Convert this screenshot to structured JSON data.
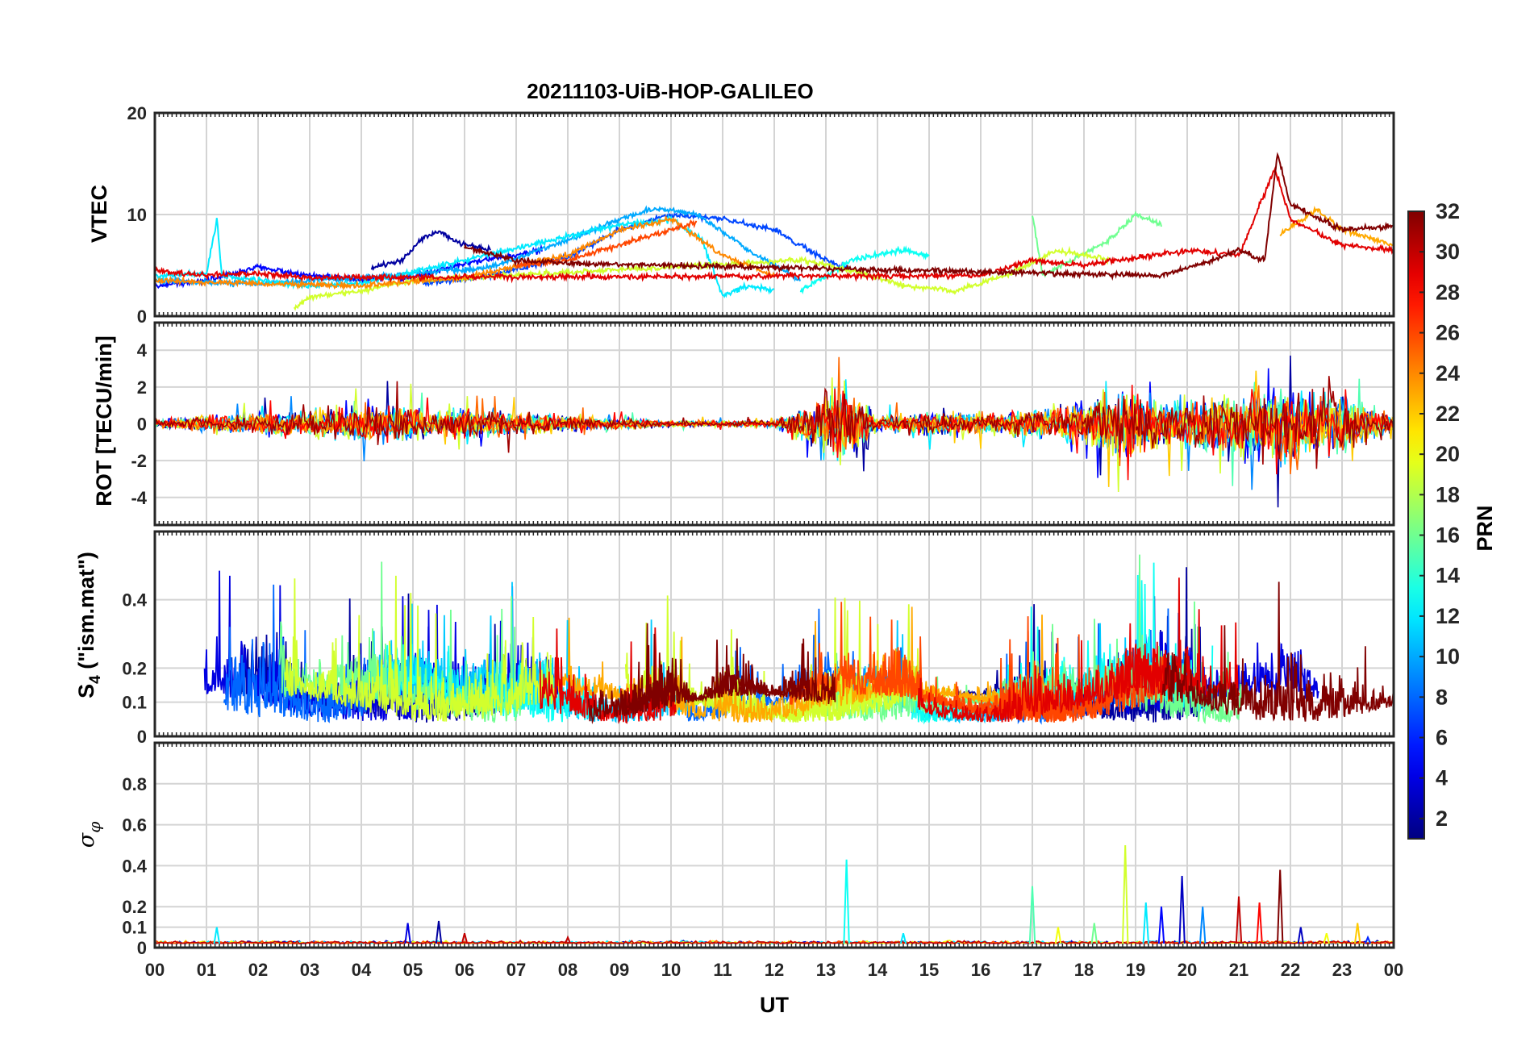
{
  "figure": {
    "title": "20211103-UiB-HOP-GALILEO",
    "xlabel": "UT",
    "x_ticks": [
      "00",
      "01",
      "02",
      "03",
      "04",
      "05",
      "06",
      "07",
      "08",
      "09",
      "10",
      "11",
      "12",
      "13",
      "14",
      "15",
      "16",
      "17",
      "18",
      "19",
      "20",
      "21",
      "22",
      "23",
      "00"
    ]
  },
  "colorbar": {
    "label": "PRN",
    "range": [
      1,
      32
    ],
    "ticks": [
      2,
      4,
      6,
      8,
      10,
      12,
      14,
      16,
      18,
      20,
      22,
      24,
      26,
      28,
      30,
      32
    ],
    "colormap": "jet"
  },
  "chart_data": [
    {
      "type": "line",
      "panel": "vtec",
      "ylabel": "VTEC",
      "ylim": [
        0,
        20
      ],
      "y_ticks": [
        0,
        10,
        20
      ],
      "xlim": [
        0,
        24
      ],
      "grid": true,
      "series_keypoints": [
        {
          "prn": 2,
          "points": [
            [
              4.2,
              4.8
            ],
            [
              4.8,
              5.5
            ],
            [
              5.2,
              7.8
            ],
            [
              5.5,
              8.3
            ],
            [
              6.0,
              7.0
            ],
            [
              6.5,
              6.5
            ]
          ]
        },
        {
          "prn": 5,
          "points": [
            [
              0,
              3.0
            ],
            [
              1.0,
              3.5
            ],
            [
              2.0,
              4.8
            ],
            [
              3.0,
              4.0
            ],
            [
              4.0,
              3.6
            ],
            [
              5.0,
              3.8
            ],
            [
              6.0,
              5.2
            ],
            [
              7.0,
              6.0
            ],
            [
              7.5,
              6.5
            ]
          ]
        },
        {
          "prn": 7,
          "points": [
            [
              5.2,
              3.2
            ],
            [
              6.5,
              4.0
            ],
            [
              8.0,
              5.8
            ],
            [
              9.0,
              8.5
            ],
            [
              10.0,
              10.0
            ],
            [
              11.0,
              9.6
            ],
            [
              12.0,
              8.5
            ],
            [
              13.0,
              5.5
            ],
            [
              13.5,
              4.5
            ]
          ]
        },
        {
          "prn": 10,
          "points": [
            [
              0,
              3.5
            ],
            [
              2.0,
              3.2
            ],
            [
              4.0,
              3.8
            ],
            [
              6.5,
              4.8
            ],
            [
              8.0,
              7.5
            ],
            [
              9.0,
              9.5
            ],
            [
              9.7,
              10.6
            ],
            [
              10.5,
              10.0
            ],
            [
              11.5,
              6.5
            ],
            [
              12.5,
              3.5
            ]
          ]
        },
        {
          "prn": 12,
          "points": [
            [
              0,
              4.0
            ],
            [
              1.0,
              4.2
            ],
            [
              1.2,
              9.5
            ],
            [
              1.3,
              4.0
            ],
            [
              2.0,
              3.5
            ],
            [
              3.0,
              3.0
            ],
            [
              4.0,
              3.2
            ],
            [
              9.0,
              9.0
            ],
            [
              10.0,
              9.5
            ],
            [
              10.6,
              7.5
            ],
            [
              11.0,
              2.0
            ],
            [
              11.5,
              3.0
            ],
            [
              12.0,
              2.5
            ]
          ]
        },
        {
          "prn": 13,
          "points": [
            [
              12.5,
              2.5
            ],
            [
              13.5,
              5.5
            ],
            [
              14.5,
              6.5
            ],
            [
              15.0,
              6.0
            ]
          ]
        },
        {
          "prn": 16,
          "points": [
            [
              17.0,
              10.0
            ],
            [
              17.2,
              4.0
            ],
            [
              18.5,
              7.5
            ],
            [
              19.0,
              10.0
            ],
            [
              19.5,
              9.0
            ]
          ]
        },
        {
          "prn": 19,
          "points": [
            [
              2.7,
              0.8
            ],
            [
              3.0,
              1.8
            ],
            [
              4.0,
              2.5
            ],
            [
              5.0,
              3.5
            ],
            [
              12.5,
              5.5
            ],
            [
              13.5,
              4.5
            ],
            [
              14.5,
              3.0
            ],
            [
              15.5,
              2.5
            ],
            [
              16.5,
              4.0
            ],
            [
              17.5,
              6.5
            ],
            [
              18.5,
              5.5
            ]
          ]
        },
        {
          "prn": 23,
          "points": [
            [
              21.8,
              8.0
            ],
            [
              22.5,
              10.5
            ],
            [
              23.0,
              8.5
            ],
            [
              24.0,
              7.0
            ]
          ]
        },
        {
          "prn": 24,
          "points": [
            [
              0,
              3.5
            ],
            [
              2.0,
              3.2
            ],
            [
              4.0,
              3.0
            ],
            [
              6.0,
              3.8
            ],
            [
              8.0,
              6.0
            ],
            [
              9.0,
              8.5
            ],
            [
              10.0,
              9.5
            ],
            [
              11.0,
              6.0
            ],
            [
              12.0,
              4.0
            ]
          ]
        },
        {
          "prn": 26,
          "points": [
            [
              7.0,
              5.0
            ],
            [
              8.0,
              5.5
            ],
            [
              9.0,
              7.0
            ],
            [
              10.0,
              8.5
            ],
            [
              10.5,
              9.2
            ]
          ]
        },
        {
          "prn": 29,
          "points": [
            [
              0,
              4.5
            ],
            [
              1.0,
              4.0
            ],
            [
              2.0,
              4.2
            ],
            [
              3.0,
              3.8
            ],
            [
              16.0,
              4.0
            ],
            [
              17.0,
              5.5
            ],
            [
              18.0,
              5.0
            ],
            [
              20.0,
              6.5
            ],
            [
              21.0,
              6.0
            ],
            [
              21.7,
              14.5
            ],
            [
              22.0,
              9.5
            ],
            [
              23.0,
              7.0
            ],
            [
              24.0,
              6.5
            ]
          ]
        },
        {
          "prn": 32,
          "points": [
            [
              6.0,
              6.8
            ],
            [
              7.0,
              5.5
            ],
            [
              8.0,
              5.2
            ],
            [
              19.5,
              4.0
            ],
            [
              20.5,
              5.5
            ],
            [
              21.0,
              6.5
            ],
            [
              21.5,
              5.5
            ],
            [
              21.75,
              16.0
            ],
            [
              22.0,
              11.0
            ],
            [
              23.0,
              8.5
            ],
            [
              24.0,
              8.8
            ]
          ]
        }
      ]
    },
    {
      "type": "line",
      "panel": "rot",
      "ylabel": "ROT [TECU/min]",
      "ylim": [
        -5.5,
        5.5
      ],
      "y_ticks": [
        -4,
        -2,
        0,
        2,
        4
      ],
      "xlim": [
        0,
        24
      ],
      "grid": true,
      "activity_envelope": [
        [
          0,
          0.6
        ],
        [
          4.8,
          2.5
        ],
        [
          5.5,
          1.5
        ],
        [
          6.0,
          2.0
        ],
        [
          8.0,
          1.0
        ],
        [
          10.0,
          0.4
        ],
        [
          12.0,
          0.4
        ],
        [
          13.4,
          5.2
        ],
        [
          14.0,
          1.0
        ],
        [
          15.0,
          1.5
        ],
        [
          16.5,
          1.5
        ],
        [
          17.0,
          2.0
        ],
        [
          18.0,
          2.5
        ],
        [
          18.8,
          5.0
        ],
        [
          19.5,
          3.0
        ],
        [
          20.5,
          3.5
        ],
        [
          21.7,
          5.5
        ],
        [
          22.5,
          5.0
        ],
        [
          23.5,
          2.5
        ],
        [
          24.0,
          1.0
        ]
      ]
    },
    {
      "type": "line",
      "panel": "s4",
      "ylabel": "S4 (\"ism.mat\")",
      "ylabel_parts": [
        "S",
        "4",
        " (\"ism.mat\")"
      ],
      "ylim": [
        0,
        0.6
      ],
      "y_ticks": [
        0,
        0.1,
        0.2,
        0.4
      ],
      "xlim": [
        0,
        24
      ],
      "grid": true,
      "baseline": 0.08,
      "activity_envelope": [
        [
          0,
          0.15
        ],
        [
          0.5,
          0.3
        ],
        [
          1.2,
          0.52
        ],
        [
          2.5,
          0.58
        ],
        [
          3.0,
          0.3
        ],
        [
          4.3,
          0.58
        ],
        [
          5.0,
          0.45
        ],
        [
          6.0,
          0.35
        ],
        [
          7.5,
          0.53
        ],
        [
          8.5,
          0.3
        ],
        [
          9.0,
          0.25
        ],
        [
          10.0,
          0.43
        ],
        [
          10.5,
          0.15
        ],
        [
          11.0,
          0.35
        ],
        [
          12.0,
          0.2
        ],
        [
          13.0,
          0.45
        ],
        [
          14.0,
          0.38
        ],
        [
          14.5,
          0.48
        ],
        [
          15.0,
          0.2
        ],
        [
          16.0,
          0.15
        ],
        [
          17.0,
          0.4
        ],
        [
          18.0,
          0.3
        ],
        [
          19.0,
          0.55
        ],
        [
          20.0,
          0.5
        ],
        [
          20.5,
          0.3
        ],
        [
          22.0,
          0.55
        ],
        [
          22.5,
          0.4
        ],
        [
          23.0,
          0.35
        ],
        [
          24.0,
          0.2
        ]
      ]
    },
    {
      "type": "line",
      "panel": "sigma_phi",
      "ylabel": "σφ",
      "ylabel_parts": [
        "σ",
        "φ"
      ],
      "ylim": [
        0,
        1.0
      ],
      "y_ticks": [
        0,
        0.1,
        0.2,
        0.4,
        0.6,
        0.8
      ],
      "xlim": [
        0,
        24
      ],
      "grid": true,
      "baseline": 0.02,
      "spikes": [
        [
          1.2,
          0.1,
          12
        ],
        [
          4.9,
          0.12,
          4
        ],
        [
          5.5,
          0.13,
          2
        ],
        [
          6.0,
          0.07,
          30
        ],
        [
          8.0,
          0.05,
          30
        ],
        [
          13.4,
          0.43,
          13
        ],
        [
          14.5,
          0.07,
          12
        ],
        [
          17.0,
          0.3,
          15
        ],
        [
          17.5,
          0.1,
          20
        ],
        [
          18.2,
          0.12,
          16
        ],
        [
          18.8,
          0.5,
          19
        ],
        [
          19.2,
          0.22,
          12
        ],
        [
          19.5,
          0.2,
          5
        ],
        [
          19.9,
          0.35,
          3
        ],
        [
          20.3,
          0.2,
          9
        ],
        [
          21.0,
          0.25,
          30
        ],
        [
          21.4,
          0.22,
          28
        ],
        [
          21.8,
          0.38,
          32
        ],
        [
          22.2,
          0.1,
          3
        ],
        [
          22.7,
          0.07,
          20
        ],
        [
          23.3,
          0.12,
          22
        ],
        [
          23.5,
          0.05,
          6
        ]
      ]
    }
  ]
}
